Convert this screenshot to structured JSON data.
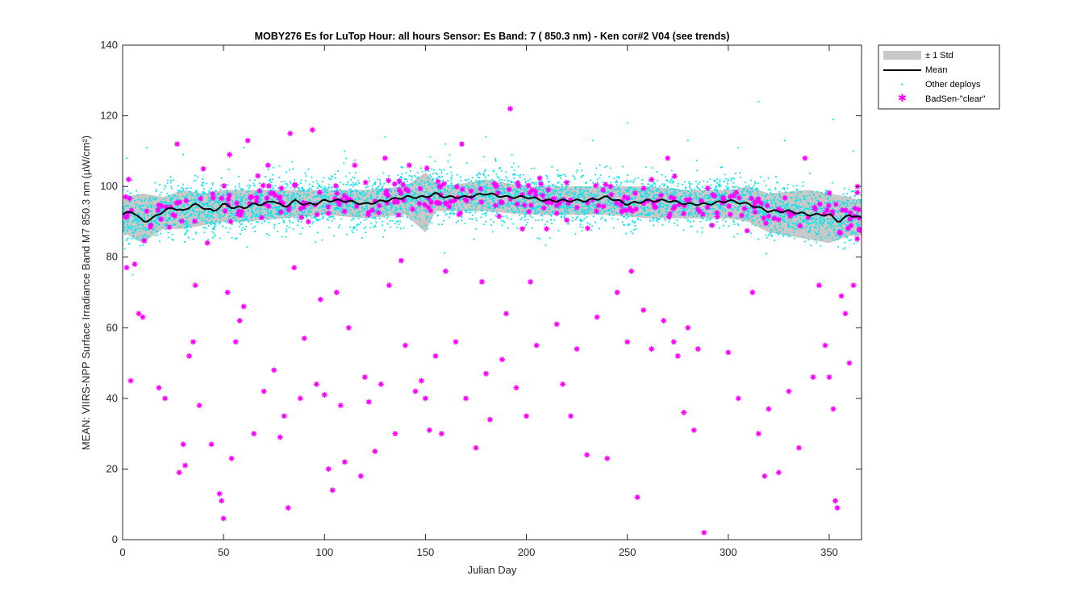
{
  "chart_data": {
    "type": "scatter",
    "title": "MOBY276   Es for LuTop  Hour: all hours  Sensor: Es Band: 7 ( 850.3 nm)  - Ken cor#2 V04 (see trends)",
    "xlabel": "Julian Day",
    "ylabel": "MEAN: VIIRS-NPP Surface Irradiance Band M7 850.3 nm (µW/cm²)",
    "xlim": [
      0,
      366
    ],
    "ylim": [
      0,
      140
    ],
    "xticks": [
      0,
      50,
      100,
      150,
      200,
      250,
      300,
      350
    ],
    "yticks": [
      0,
      20,
      40,
      60,
      80,
      100,
      120,
      140
    ],
    "grid": false,
    "legend_position": "outside-top-right",
    "legend": [
      "± 1 Std",
      "Mean",
      "Other deploys",
      "BadSen-\"clear\""
    ],
    "colors": {
      "std_band": "#c8c8c8",
      "mean": "#000000",
      "other": "#00e5ee",
      "badsen": "#ff00ff"
    },
    "series": [
      {
        "name": "Mean",
        "x": [
          0,
          5,
          10,
          15,
          20,
          25,
          30,
          35,
          40,
          45,
          50,
          55,
          60,
          65,
          70,
          75,
          80,
          85,
          90,
          95,
          100,
          110,
          120,
          130,
          140,
          150,
          155,
          160,
          170,
          180,
          190,
          200,
          210,
          220,
          230,
          240,
          250,
          260,
          270,
          280,
          290,
          300,
          310,
          320,
          330,
          340,
          350,
          355,
          360,
          366
        ],
        "y": [
          92,
          93,
          90,
          91,
          93,
          94,
          93,
          95,
          94,
          93,
          95,
          94,
          94,
          95,
          95,
          96,
          94,
          96,
          95,
          95,
          96,
          96,
          95,
          96,
          97,
          97,
          98,
          97,
          97,
          98,
          97,
          97,
          96,
          96,
          96,
          97,
          95,
          96,
          96,
          95,
          95,
          96,
          95,
          93,
          93,
          92,
          92,
          90,
          92,
          91
        ]
      },
      {
        "name": "± 1 Std",
        "x": [
          0,
          10,
          20,
          30,
          40,
          50,
          60,
          80,
          100,
          120,
          140,
          150,
          155,
          160,
          180,
          200,
          220,
          240,
          260,
          280,
          300,
          310,
          320,
          340,
          350,
          360,
          366
        ],
        "upper": [
          97,
          98,
          97,
          99,
          98,
          99,
          99,
          99,
          99,
          99,
          100,
          104,
          101,
          100,
          102,
          100,
          100,
          100,
          100,
          99,
          99,
          100,
          98,
          99,
          98,
          97,
          96
        ],
        "lower": [
          87,
          84,
          88,
          88,
          89,
          90,
          90,
          91,
          92,
          91,
          92,
          87,
          93,
          93,
          93,
          92,
          92,
          92,
          91,
          91,
          91,
          90,
          87,
          85,
          84,
          86,
          86
        ]
      },
      {
        "name": "BadSen-\"clear\"",
        "x": [
          2,
          3,
          4,
          6,
          8,
          10,
          12,
          14,
          18,
          21,
          25,
          27,
          28,
          30,
          31,
          33,
          35,
          36,
          38,
          40,
          42,
          44,
          48,
          49,
          50,
          52,
          53,
          54,
          56,
          58,
          60,
          62,
          65,
          67,
          70,
          72,
          75,
          78,
          80,
          82,
          83,
          85,
          88,
          90,
          92,
          94,
          96,
          98,
          100,
          102,
          104,
          106,
          108,
          110,
          112,
          115,
          118,
          120,
          122,
          125,
          128,
          130,
          132,
          135,
          138,
          140,
          142,
          145,
          148,
          150,
          152,
          155,
          158,
          160,
          165,
          168,
          170,
          175,
          178,
          180,
          182,
          185,
          188,
          190,
          192,
          195,
          198,
          200,
          202,
          205,
          210,
          215,
          218,
          222,
          225,
          230,
          235,
          238,
          240,
          245,
          250,
          252,
          255,
          258,
          262,
          265,
          268,
          270,
          273,
          275,
          278,
          280,
          283,
          285,
          288,
          292,
          300,
          305,
          312,
          315,
          318,
          320,
          325,
          330,
          335,
          338,
          342,
          345,
          348,
          350,
          352,
          353,
          354,
          356,
          358,
          360,
          362,
          364
        ],
        "y": [
          77,
          102,
          45,
          78,
          64,
          63,
          93,
          89,
          43,
          40,
          92,
          112,
          19,
          27,
          21,
          52,
          56,
          72,
          38,
          105,
          84,
          27,
          13,
          11,
          6,
          70,
          109,
          23,
          56,
          62,
          66,
          113,
          30,
          103,
          42,
          106,
          48,
          29,
          35,
          9,
          115,
          77,
          40,
          57,
          90,
          116,
          44,
          68,
          41,
          20,
          14,
          70,
          38,
          22,
          60,
          106,
          18,
          46,
          39,
          25,
          44,
          108,
          72,
          30,
          79,
          55,
          106,
          42,
          45,
          40,
          31,
          52,
          30,
          76,
          56,
          112,
          40,
          26,
          73,
          47,
          34,
          100,
          51,
          64,
          122,
          43,
          88,
          35,
          73,
          55,
          88,
          61,
          44,
          35,
          54,
          24,
          63,
          99,
          23,
          70,
          56,
          76,
          12,
          65,
          54,
          96,
          62,
          108,
          56,
          52,
          36,
          60,
          31,
          54,
          2,
          89,
          53,
          40,
          70,
          30,
          18,
          37,
          19,
          42,
          26,
          108,
          46,
          72,
          55,
          46,
          37,
          11,
          9,
          69,
          64,
          50,
          72,
          100
        ]
      },
      {
        "name": "Other deploys",
        "note_points": "dense cloud of several thousand points centred on the mean, spread roughly 82-104 with sparse outliers to about 75 and 124",
        "x": [
          2,
          5,
          12,
          30,
          60,
          110,
          130,
          160,
          180,
          233,
          250,
          280,
          305,
          315,
          328,
          352,
          362
        ],
        "y": [
          108,
          75,
          111,
          109,
          111,
          110,
          114,
          112,
          114,
          113,
          118,
          113,
          111,
          124,
          113,
          119,
          110
        ]
      }
    ]
  }
}
